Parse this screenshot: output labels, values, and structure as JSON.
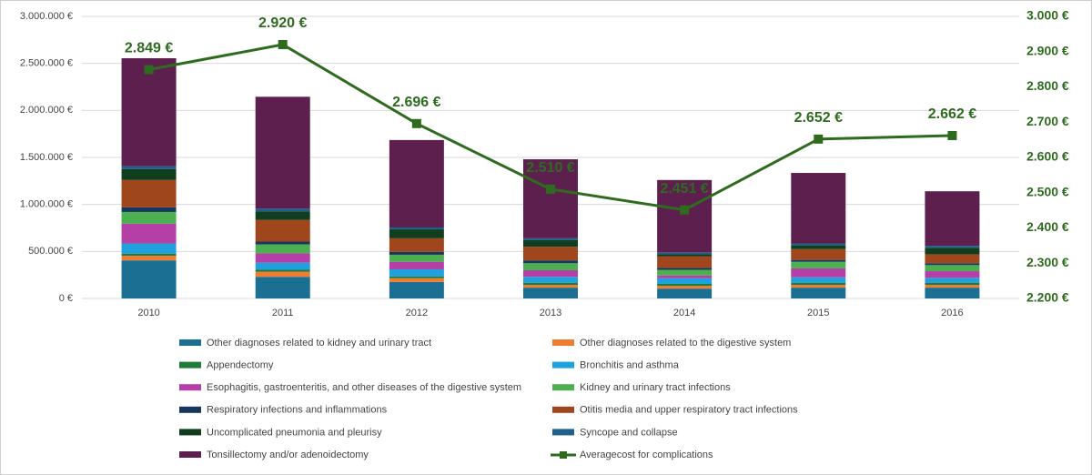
{
  "chart_data": {
    "type": "bar",
    "stacked": true,
    "categories": [
      "2010",
      "2011",
      "2012",
      "2013",
      "2014",
      "2015",
      "2016"
    ],
    "ylim": [
      0,
      3000000
    ],
    "yticks": [
      {
        "value": 0,
        "label": "0 €"
      },
      {
        "value": 500000,
        "label": "500.000 €"
      },
      {
        "value": 1000000,
        "label": "1.000.000 €"
      },
      {
        "value": 1500000,
        "label": "1.500.000 €"
      },
      {
        "value": 2000000,
        "label": "2.000.000 €"
      },
      {
        "value": 2500000,
        "label": "2.500.000 €"
      },
      {
        "value": 3000000,
        "label": "3.000.000 €"
      }
    ],
    "y2lim": [
      2200,
      3000
    ],
    "y2ticks": [
      {
        "value": 2200,
        "label": "2.200 €"
      },
      {
        "value": 2300,
        "label": "2.300 €"
      },
      {
        "value": 2400,
        "label": "2.400 €"
      },
      {
        "value": 2500,
        "label": "2.500 €"
      },
      {
        "value": 2600,
        "label": "2.600 €"
      },
      {
        "value": 2700,
        "label": "2.700 €"
      },
      {
        "value": 2800,
        "label": "2.800 €"
      },
      {
        "value": 2900,
        "label": "2.900 €"
      },
      {
        "value": 3000,
        "label": "3.000 €"
      }
    ],
    "grid": true,
    "legend": "bottom",
    "series": [
      {
        "name": "Other diagnoses related to kidney and urinary tract",
        "color": "#1b6f93",
        "values": [
          405000,
          230000,
          175000,
          115000,
          105000,
          115000,
          115000
        ]
      },
      {
        "name": "Other diagnoses related to the digestive system",
        "color": "#ed7d31",
        "values": [
          50000,
          55000,
          40000,
          30000,
          30000,
          30000,
          30000
        ]
      },
      {
        "name": "Appendectomy",
        "color": "#1e7b3a",
        "values": [
          20000,
          20000,
          20000,
          20000,
          20000,
          20000,
          20000
        ]
      },
      {
        "name": "Bronchitis and asthma",
        "color": "#1ea1dc",
        "values": [
          110000,
          75000,
          75000,
          65000,
          60000,
          60000,
          55000
        ]
      },
      {
        "name": "Esophagitis, gastroenteritis, and other diseases of the digestive system",
        "color": "#b43fa6",
        "values": [
          210000,
          100000,
          80000,
          70000,
          30000,
          95000,
          70000
        ]
      },
      {
        "name": "Kidney and urinary tract infections",
        "color": "#4caf50",
        "values": [
          125000,
          95000,
          75000,
          75000,
          60000,
          70000,
          65000
        ]
      },
      {
        "name": "Respiratory infections and inflammations",
        "color": "#17375e",
        "values": [
          50000,
          30000,
          30000,
          30000,
          20000,
          20000,
          20000
        ]
      },
      {
        "name": "Otitis media and upper respiratory tract infections",
        "color": "#a0461c",
        "values": [
          290000,
          230000,
          145000,
          145000,
          125000,
          115000,
          95000
        ]
      },
      {
        "name": "Uncomplicated pneumonia and pleurisy",
        "color": "#0f3d1e",
        "values": [
          115000,
          90000,
          95000,
          70000,
          20000,
          40000,
          70000
        ]
      },
      {
        "name": "Syncope and collapse",
        "color": "#1f5f8b",
        "values": [
          30000,
          30000,
          20000,
          20000,
          20000,
          20000,
          20000
        ]
      },
      {
        "name": "Tonsillectomy and/or adenoidectomy",
        "color": "#5c1f4e",
        "values": [
          1150000,
          1190000,
          930000,
          840000,
          770000,
          750000,
          580000
        ]
      },
      {
        "name": "Averagecost for complications",
        "type": "line",
        "axis": "y2",
        "color": "#2e6b1f",
        "values": [
          2849,
          2920,
          2696,
          2510,
          2451,
          2652,
          2662
        ],
        "value_labels": [
          "2.849 €",
          "2.920 €",
          "2.696 €",
          "2.510 €",
          "2.451 €",
          "2.652 €",
          "2.662 €"
        ]
      }
    ]
  }
}
